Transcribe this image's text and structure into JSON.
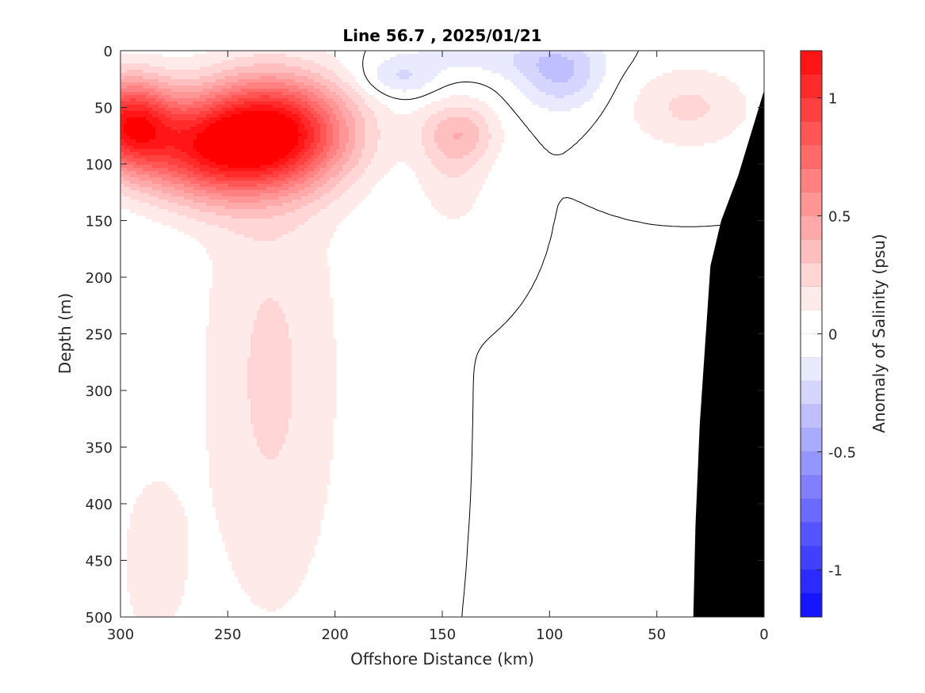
{
  "chart_data": {
    "type": "heatmap",
    "subtype": "filled-contour-section",
    "title": "Line 56.7 , 2025/01/21",
    "xlabel": "Offshore Distance (km)",
    "ylabel": "Depth (m)",
    "colorbar_label": "Anomaly of Salinity (psu)",
    "xlim": [
      300,
      0
    ],
    "x_reversed": true,
    "ylim": [
      0,
      500
    ],
    "y_reversed": true,
    "x_ticks": [
      300,
      250,
      200,
      150,
      100,
      50,
      0
    ],
    "x_tick_labels": [
      "300",
      "250",
      "200",
      "150",
      "100",
      "50",
      "0"
    ],
    "y_ticks": [
      0,
      50,
      100,
      150,
      200,
      250,
      300,
      350,
      400,
      450,
      500
    ],
    "y_tick_labels": [
      "0",
      "50",
      "100",
      "150",
      "200",
      "250",
      "300",
      "350",
      "400",
      "450",
      "500"
    ],
    "colorbar_range": [
      -1.2,
      1.2
    ],
    "colorbar_ticks": [
      1,
      0.5,
      0,
      -0.5,
      -1
    ],
    "colorbar_tick_labels": [
      "1",
      "0.5",
      "0",
      "-0.5",
      "-1"
    ],
    "contour_interval": 0.1,
    "zero_contour_drawn": true,
    "colors": {
      "positive_max": "#ff0000",
      "negative_max": "#0000ff",
      "zero": "#ffffff",
      "bathymetry": "#000000"
    },
    "features": [
      {
        "kind": "positive-max",
        "x_km": 228,
        "depth_m": 72,
        "value": 1.1
      },
      {
        "kind": "positive-max",
        "x_km": 293,
        "depth_m": 65,
        "value": 1.0
      },
      {
        "kind": "positive-max",
        "x_km": 142,
        "depth_m": 70,
        "value": 0.3
      },
      {
        "kind": "positive-max",
        "x_km": 40,
        "depth_m": 45,
        "value": 0.2
      },
      {
        "kind": "negative-min",
        "x_km": 95,
        "depth_m": 20,
        "value": -0.3
      },
      {
        "kind": "negative-min",
        "x_km": 170,
        "depth_m": 25,
        "value": -0.2
      }
    ],
    "bathymetry": {
      "x_km": [
        0,
        0,
        12,
        20,
        25,
        30,
        32,
        33
      ],
      "depth_m": [
        500,
        35,
        110,
        150,
        190,
        330,
        420,
        500
      ]
    }
  }
}
